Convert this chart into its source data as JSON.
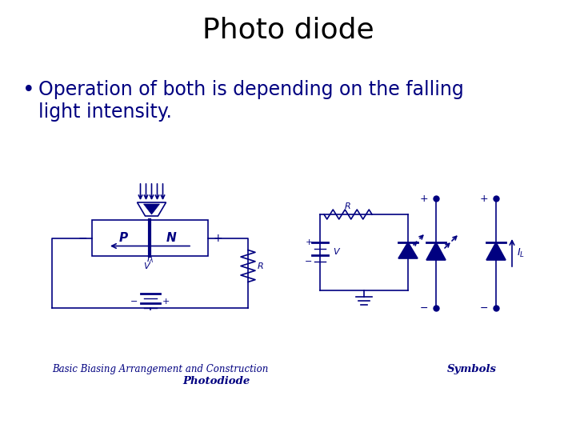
{
  "title": "Photo diode",
  "bullet": "Operation of both is depending on the falling\nlight intensity.",
  "caption1": "Basic Biasing Arrangement and Construction",
  "caption2": "Photodiode",
  "caption3": "Symbols",
  "bg_color": "#ffffff",
  "title_color": "#000000",
  "text_color": "#000080",
  "diagram_color": "#000080",
  "title_fontsize": 26,
  "bullet_fontsize": 17,
  "caption_fontsize": 8.5
}
